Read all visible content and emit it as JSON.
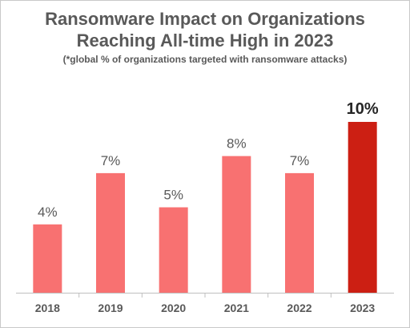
{
  "chart_data": {
    "type": "bar",
    "title": "Ransomware Impact on Organizations Reaching All-time High in 2023",
    "title_lines": [
      "Ransomware Impact on Organizations",
      "Reaching All-time High in 2023"
    ],
    "subtitle": "(*global % of organizations targeted with ransomware attacks)",
    "categories": [
      "2018",
      "2019",
      "2020",
      "2021",
      "2022",
      "2023"
    ],
    "values": [
      4,
      7,
      5,
      8,
      7,
      10
    ],
    "data_labels": [
      "4%",
      "7%",
      "5%",
      "8%",
      "7%",
      "10%"
    ],
    "unit": "%",
    "ylim": [
      0,
      10
    ],
    "grid": false,
    "legend": "none",
    "xlabel": "",
    "ylabel": "",
    "colors": {
      "bar": "#f87171",
      "highlight": "#cc1f13",
      "text": "#595959",
      "highlight_label": "#262626"
    },
    "highlight_index": 5
  }
}
